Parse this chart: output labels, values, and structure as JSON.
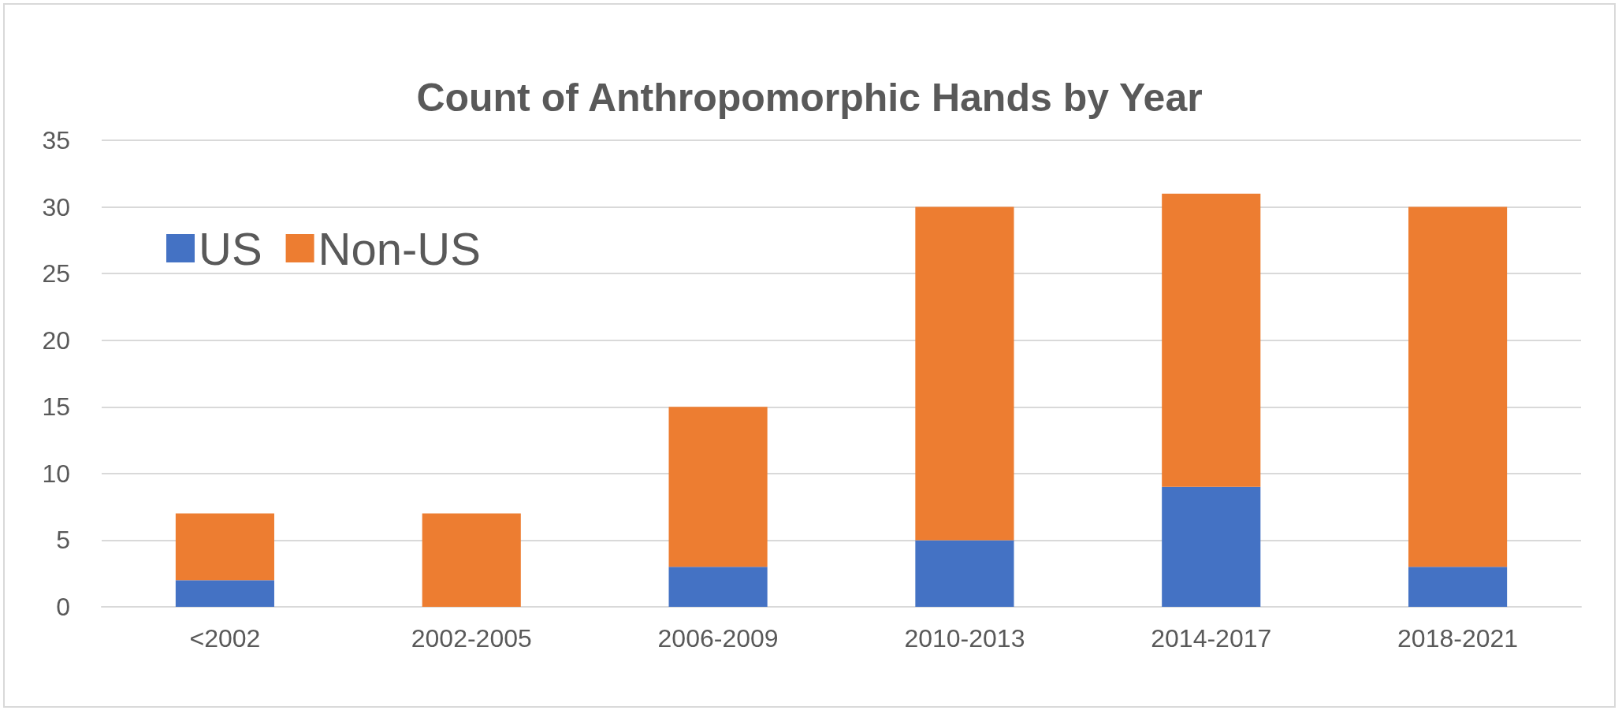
{
  "chart_data": {
    "type": "bar",
    "title": "Count of Anthropomorphic Hands by Year",
    "categories": [
      "<2002",
      "2002-2005",
      "2006-2009",
      "2010-2013",
      "2014-2017",
      "2018-2021"
    ],
    "series": [
      {
        "name": "US",
        "color": "#4472c4",
        "values": [
          2,
          0,
          3,
          5,
          9,
          3
        ]
      },
      {
        "name": "Non-US",
        "color": "#ed7d31",
        "values": [
          5,
          7,
          12,
          25,
          22,
          27
        ]
      }
    ],
    "stacked": true,
    "ylim": [
      0,
      35
    ],
    "yticks": [
      0,
      5,
      10,
      15,
      20,
      25,
      30,
      35
    ],
    "grid": "y",
    "legend": "top left"
  }
}
